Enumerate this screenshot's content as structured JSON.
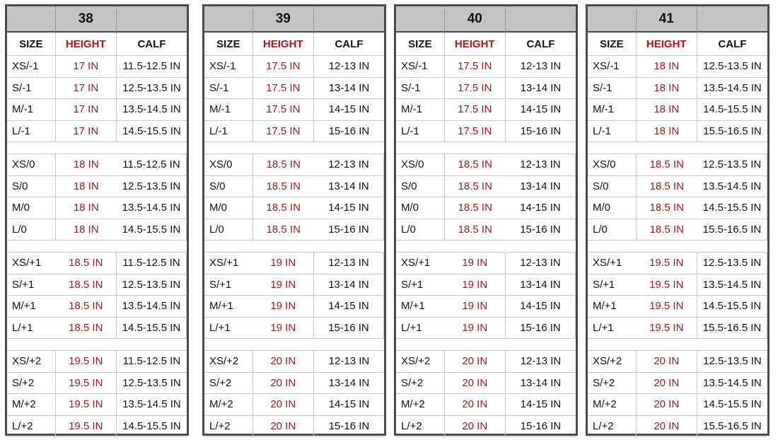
{
  "headers": {
    "size": "SIZE",
    "height": "HEIGHT",
    "calf": "CALF"
  },
  "tables": [
    {
      "shoe_size": "38",
      "groups": [
        [
          [
            "XS/-1",
            "17 IN",
            "11.5-12.5 IN"
          ],
          [
            "S/-1",
            "17 IN",
            "12.5-13.5 IN"
          ],
          [
            "M/-1",
            "17 IN",
            "13.5-14.5 IN"
          ],
          [
            "L/-1",
            "17 IN",
            "14.5-15.5 IN"
          ]
        ],
        [
          [
            "XS/0",
            "18 IN",
            "11.5-12.5 IN"
          ],
          [
            "S/0",
            "18 IN",
            "12.5-13.5 IN"
          ],
          [
            "M/0",
            "18 IN",
            "13.5-14.5 IN"
          ],
          [
            "L/0",
            "18 IN",
            "14.5-15.5 IN"
          ]
        ],
        [
          [
            "XS/+1",
            "18.5 IN",
            "11.5-12.5 IN"
          ],
          [
            "S/+1",
            "18.5 IN",
            "12.5-13.5 IN"
          ],
          [
            "M/+1",
            "18.5 IN",
            "13.5-14.5 IN"
          ],
          [
            "L/+1",
            "18.5 IN",
            "14.5-15.5 IN"
          ]
        ],
        [
          [
            "XS/+2",
            "19.5 IN",
            "11.5-12.5 IN"
          ],
          [
            "S/+2",
            "19.5 IN",
            "12.5-13.5 IN"
          ],
          [
            "M/+2",
            "19.5 IN",
            "13.5-14.5 IN"
          ],
          [
            "L/+2",
            "19.5 IN",
            "14.5-15.5 IN"
          ]
        ]
      ]
    },
    {
      "shoe_size": "39",
      "groups": [
        [
          [
            "XS/-1",
            "17.5 IN",
            "12-13 IN"
          ],
          [
            "S/-1",
            "17.5 IN",
            "13-14 IN"
          ],
          [
            "M/-1",
            "17.5 IN",
            "14-15 IN"
          ],
          [
            "L/-1",
            "17.5 IN",
            "15-16 IN"
          ]
        ],
        [
          [
            "XS/0",
            "18.5 IN",
            "12-13 IN"
          ],
          [
            "S/0",
            "18.5 IN",
            "13-14 IN"
          ],
          [
            "M/0",
            "18.5 IN",
            "14-15 IN"
          ],
          [
            "L/0",
            "18.5 IN",
            "15-16 IN"
          ]
        ],
        [
          [
            "XS/+1",
            "19 IN",
            "12-13 IN"
          ],
          [
            "S/+1",
            "19 IN",
            "13-14 IN"
          ],
          [
            "M/+1",
            "19 IN",
            "14-15 IN"
          ],
          [
            "L/+1",
            "19 IN",
            "15-16 IN"
          ]
        ],
        [
          [
            "XS/+2",
            "20 IN",
            "12-13 IN"
          ],
          [
            "S/+2",
            "20 IN",
            "13-14 IN"
          ],
          [
            "M/+2",
            "20 IN",
            "14-15 IN"
          ],
          [
            "L/+2",
            "20 IN",
            "15-16 IN"
          ]
        ]
      ]
    },
    {
      "shoe_size": "40",
      "groups": [
        [
          [
            "XS/-1",
            "17.5 IN",
            "12-13 IN"
          ],
          [
            "S/-1",
            "17.5 IN",
            "13-14 IN"
          ],
          [
            "M/-1",
            "17.5 IN",
            "14-15 IN"
          ],
          [
            "L/-1",
            "17.5 IN",
            "15-16 IN"
          ]
        ],
        [
          [
            "XS/0",
            "18.5 IN",
            "12-13 IN"
          ],
          [
            "S/0",
            "18.5 IN",
            "13-14 IN"
          ],
          [
            "M/0",
            "18.5 IN",
            "14-15 IN"
          ],
          [
            "L/0",
            "18.5 IN",
            "15-16 IN"
          ]
        ],
        [
          [
            "XS/+1",
            "19 IN",
            "12-13 IN"
          ],
          [
            "S/+1",
            "19 IN",
            "13-14 IN"
          ],
          [
            "M/+1",
            "19 IN",
            "14-15 IN"
          ],
          [
            "L/+1",
            "19 IN",
            "15-16 IN"
          ]
        ],
        [
          [
            "XS/+2",
            "20 IN",
            "12-13 IN"
          ],
          [
            "S/+2",
            "20 IN",
            "13-14 IN"
          ],
          [
            "M/+2",
            "20 IN",
            "14-15 IN"
          ],
          [
            "L/+2",
            "20 IN",
            "15-16 IN"
          ]
        ]
      ]
    },
    {
      "shoe_size": "41",
      "groups": [
        [
          [
            "XS/-1",
            "18 IN",
            "12.5-13.5 IN"
          ],
          [
            "S/-1",
            "18 IN",
            "13.5-14.5 IN"
          ],
          [
            "M/-1",
            "18 IN",
            "14.5-15.5 IN"
          ],
          [
            "L/-1",
            "18 IN",
            "15.5-16.5 IN"
          ]
        ],
        [
          [
            "XS/0",
            "18.5 IN",
            "12.5-13.5 IN"
          ],
          [
            "S/0",
            "18.5 IN",
            "13.5-14.5 IN"
          ],
          [
            "M/0",
            "18.5 IN",
            "14.5-15.5 IN"
          ],
          [
            "L/0",
            "18.5 IN",
            "15.5-16.5 IN"
          ]
        ],
        [
          [
            "XS/+1",
            "19.5 IN",
            "12.5-13.5 IN"
          ],
          [
            "S/+1",
            "19.5 IN",
            "13.5-14.5 IN"
          ],
          [
            "M/+1",
            "19.5 IN",
            "14.5-15.5 IN"
          ],
          [
            "L/+1",
            "19.5 IN",
            "15.5-16.5 IN"
          ]
        ],
        [
          [
            "XS/+2",
            "20 IN",
            "12.5-13.5 IN"
          ],
          [
            "S/+2",
            "20 IN",
            "13.5-14.5 IN"
          ],
          [
            "M/+2",
            "20 IN",
            "14.5-15.5 IN"
          ],
          [
            "L/+2",
            "20 IN",
            "15.5-16.5 IN"
          ]
        ]
      ]
    }
  ],
  "colors": {
    "height_text": "#9b1a1a",
    "height_header": "#b0141a",
    "title_band": "#c4c4c4",
    "border": "#4a4a4a"
  }
}
